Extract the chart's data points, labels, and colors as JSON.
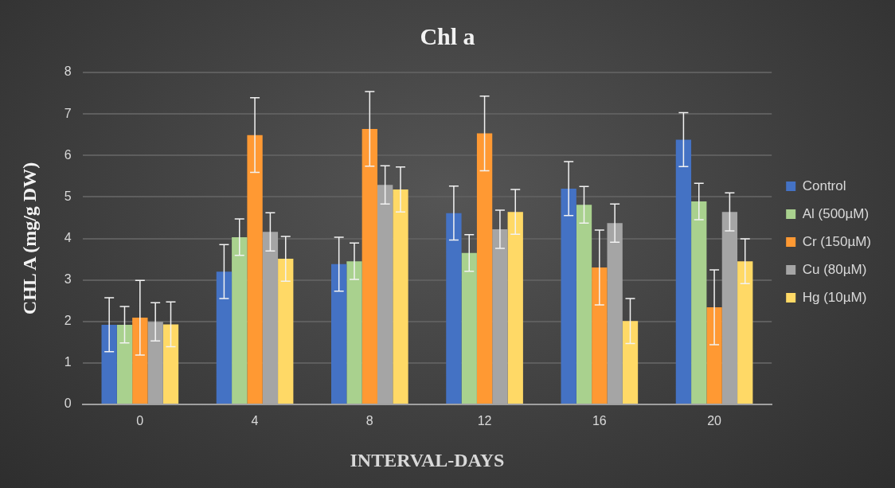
{
  "chart_data": {
    "type": "bar",
    "title": "Chl a",
    "xlabel": "INTERVAL-DAYS",
    "ylabel": "CHL A (mg/g DW)",
    "categories": [
      "0",
      "4",
      "8",
      "12",
      "16",
      "20"
    ],
    "series": [
      {
        "name": "Control",
        "color": "#4472c4",
        "values": [
          1.92,
          3.2,
          3.38,
          4.61,
          5.2,
          6.38
        ],
        "errors": [
          0.65,
          0.65,
          0.65,
          0.65,
          0.65,
          0.65
        ]
      },
      {
        "name": "Al (500µM)",
        "color": "#a9d18e",
        "values": [
          1.92,
          4.03,
          3.45,
          3.65,
          4.81,
          4.89
        ],
        "errors": [
          0.44,
          0.44,
          0.44,
          0.44,
          0.44,
          0.44
        ]
      },
      {
        "name": "Cr (150µM)",
        "color": "#ff9933",
        "values": [
          2.09,
          6.49,
          6.64,
          6.53,
          3.3,
          2.34
        ],
        "errors": [
          0.9,
          0.9,
          0.9,
          0.9,
          0.9,
          0.9
        ]
      },
      {
        "name": "Cu (80µM)",
        "color": "#a5a5a5",
        "values": [
          1.99,
          4.16,
          5.29,
          4.22,
          4.37,
          4.64
        ],
        "errors": [
          0.46,
          0.46,
          0.46,
          0.46,
          0.46,
          0.46
        ]
      },
      {
        "name": "Hg (10µM)",
        "color": "#ffd966",
        "values": [
          1.93,
          3.51,
          5.18,
          4.64,
          2.01,
          3.45
        ],
        "errors": [
          0.54,
          0.54,
          0.54,
          0.54,
          0.54,
          0.54
        ]
      }
    ],
    "ylim": [
      0,
      8
    ],
    "yticks": [
      0,
      1,
      2,
      3,
      4,
      5,
      6,
      7,
      8
    ],
    "grid": "y",
    "legend": "right"
  }
}
